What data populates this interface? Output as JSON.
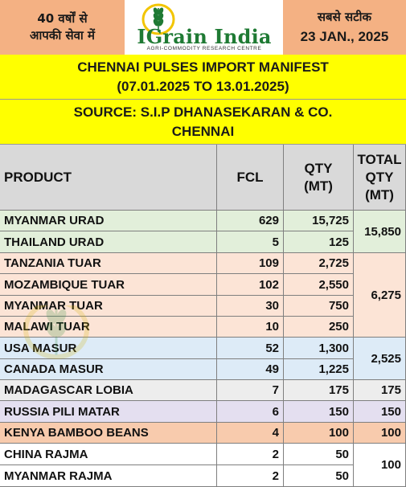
{
  "header": {
    "left_line1": "40 वर्षों से",
    "left_line2": "आपकी सेवा में",
    "logo_name": "IGrain India",
    "logo_tagline": "AGRI-COMMODITY RESEARCH CENTRE",
    "right_line1": "सबसे सटीक",
    "right_date": "23 JAN., 2025"
  },
  "title": {
    "line1": "CHENNAI PULSES IMPORT MANIFEST",
    "line2": "(07.01.2025 TO 13.01.2025)"
  },
  "source": {
    "line1": "SOURCE: S.I.P DHANASEKARAN & CO.",
    "line2": "CHENNAI"
  },
  "table": {
    "headers": {
      "product": "PRODUCT",
      "fcl": "FCL",
      "qty_l1": "QTY",
      "qty_l2": "(MT)",
      "total_l1": "TOTAL",
      "total_l2": "QTY",
      "total_l3": "(MT)"
    },
    "rows": [
      {
        "product": "MYANMAR URAD",
        "fcl": "629",
        "qty": "15,725"
      },
      {
        "product": "THAILAND URAD",
        "fcl": "5",
        "qty": "125"
      },
      {
        "product": "TANZANIA TUAR",
        "fcl": "109",
        "qty": "2,725"
      },
      {
        "product": "MOZAMBIQUE TUAR",
        "fcl": "102",
        "qty": "2,550"
      },
      {
        "product": "MYANMAR TUAR",
        "fcl": "30",
        "qty": "750"
      },
      {
        "product": "MALAWI TUAR",
        "fcl": "10",
        "qty": "250"
      },
      {
        "product": "USA MASUR",
        "fcl": "52",
        "qty": "1,300"
      },
      {
        "product": "CANADA MASUR",
        "fcl": "49",
        "qty": "1,225"
      },
      {
        "product": "MADAGASCAR LOBIA",
        "fcl": "7",
        "qty": "175"
      },
      {
        "product": "RUSSIA PILI MATAR",
        "fcl": "6",
        "qty": "150"
      },
      {
        "product": "KENYA BAMBOO BEANS",
        "fcl": "4",
        "qty": "100"
      },
      {
        "product": "CHINA RAJMA",
        "fcl": "2",
        "qty": "50"
      },
      {
        "product": "MYANMAR RAJMA",
        "fcl": "2",
        "qty": "50"
      }
    ],
    "totals": {
      "urad": "15,850",
      "tuar": "6,275",
      "masur": "2,525",
      "lobia": "175",
      "pili_matar": "150",
      "bamboo_beans": "100",
      "rajma": "100"
    }
  },
  "colors": {
    "header_orange": "#f4b183",
    "title_yellow": "#ffff00",
    "table_header_gray": "#d9d9d9",
    "urad_green": "#e2efda",
    "tuar_peach": "#fce4d6",
    "masur_blue": "#ddebf7",
    "lobia_gray": "#ededed",
    "pili_matar_lavender": "#e4dff0",
    "bamboo_pink": "#f8cbad",
    "logo_green": "#1f7a34"
  }
}
